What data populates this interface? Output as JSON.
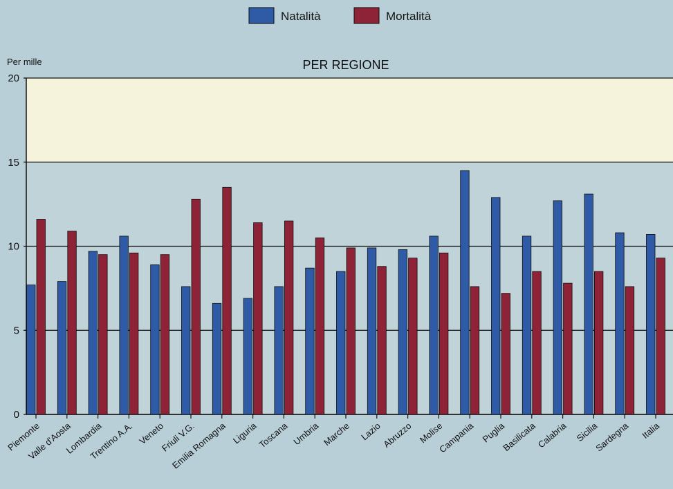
{
  "chart_data": {
    "type": "bar",
    "title": "PER REGIONE",
    "ylabel": "Per mille",
    "xlabel": "",
    "ylim": [
      0,
      20
    ],
    "yticks": [
      0,
      5,
      10,
      15,
      20
    ],
    "grid": true,
    "legend_position": "top-center",
    "categories": [
      "Piemonte",
      "Valle d'Aosta",
      "Lombardia",
      "Trentino A.A.",
      "Veneto",
      "Friuli V.G.",
      "Emilia Romagna",
      "Liguria",
      "Toscana",
      "Umbria",
      "Marche",
      "Lazio",
      "Abruzzo",
      "Molise",
      "Campania",
      "Puglia",
      "Basilicata",
      "Calabria",
      "Sicilia",
      "Sardegna",
      "Italia"
    ],
    "series": [
      {
        "name": "Natalità",
        "color": "#2f5aa6",
        "values": [
          7.7,
          7.9,
          9.7,
          10.6,
          8.9,
          7.6,
          6.6,
          6.9,
          7.6,
          8.7,
          8.5,
          9.9,
          9.8,
          10.6,
          14.5,
          12.9,
          10.6,
          12.7,
          13.1,
          10.8,
          10.7
        ]
      },
      {
        "name": "Mortalità",
        "color": "#8e2338",
        "values": [
          11.6,
          10.9,
          9.5,
          9.6,
          9.5,
          12.8,
          13.5,
          11.4,
          11.5,
          10.5,
          9.9,
          8.8,
          9.3,
          9.6,
          7.6,
          7.2,
          8.5,
          7.8,
          8.5,
          7.6,
          9.3
        ]
      }
    ]
  }
}
